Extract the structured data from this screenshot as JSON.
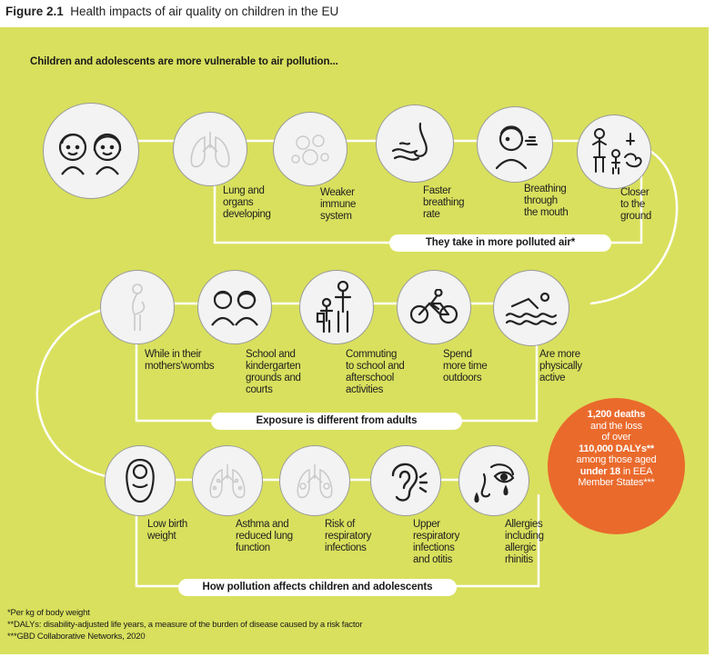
{
  "figure": {
    "number": "Figure 2.1",
    "title": "Health impacts of air quality on children in the EU",
    "subtitle": "Children and adolescents are more vulnerable to air pollution..."
  },
  "rows": [
    {
      "banner": "They take in more polluted air*",
      "items": [
        {
          "label": "",
          "icon": "children-faces-icon"
        },
        {
          "label": "Lung and\norgans\ndeveloping",
          "icon": "lungs-icon"
        },
        {
          "label": "Weaker\nimmune\nsystem",
          "icon": "virus-icon"
        },
        {
          "label": "Faster\nbreathing\nrate",
          "icon": "nose-breath-icon"
        },
        {
          "label": "Breathing\nthrough\nthe mouth",
          "icon": "mouth-breathing-icon"
        },
        {
          "label": "Closer\nto the\nground",
          "icon": "child-exhaust-icon"
        }
      ]
    },
    {
      "banner": "Exposure is different from adults",
      "items": [
        {
          "label": "While in their\nmothers'wombs",
          "icon": "pregnant-woman-icon"
        },
        {
          "label": "School and\nkindergarten\ngrounds and\ncourts",
          "icon": "children-icon"
        },
        {
          "label": "Commuting\nto school and\nafterschool\nactivities",
          "icon": "adult-child-icon"
        },
        {
          "label": "Spend\nmore time\noutdoors",
          "icon": "cyclist-icon"
        },
        {
          "label": "Are more\nphysically\nactive",
          "icon": "swimmer-icon"
        }
      ]
    },
    {
      "banner": "How pollution affects children and adolescents",
      "items": [
        {
          "label": "Low birth\nweight",
          "icon": "baby-icon"
        },
        {
          "label": "Asthma and\nreduced lung\nfunction",
          "icon": "asthma-icon"
        },
        {
          "label": "Risk of\nrespiratory\ninfections",
          "icon": "infected-lungs-icon"
        },
        {
          "label": "Upper\nrespiratory\ninfections\nand otitis",
          "icon": "ear-icon"
        },
        {
          "label": "Allergies\nincluding\nallergic\nrhinitis",
          "icon": "allergy-face-icon"
        }
      ]
    }
  ],
  "stat": {
    "deaths": "1,200 deaths",
    "line2": "and the loss",
    "line3": "of over",
    "dalys": "110,000 DALYs**",
    "line5": "among those aged",
    "under": "under 18",
    "line6a": " in EEA",
    "line7": "Member States***"
  },
  "footnotes": [
    "*Per kg of body weight",
    "**DALYs: disability-adjusted life years, a measure of the burden of disease caused by a risk factor",
    "***GBD Collaborative Networks, 2020"
  ],
  "colors": {
    "background": "#d9e05d",
    "connector": "#ffffff",
    "circle_fill": "#f2f3f2",
    "stat_fill": "#ea6a2c"
  }
}
